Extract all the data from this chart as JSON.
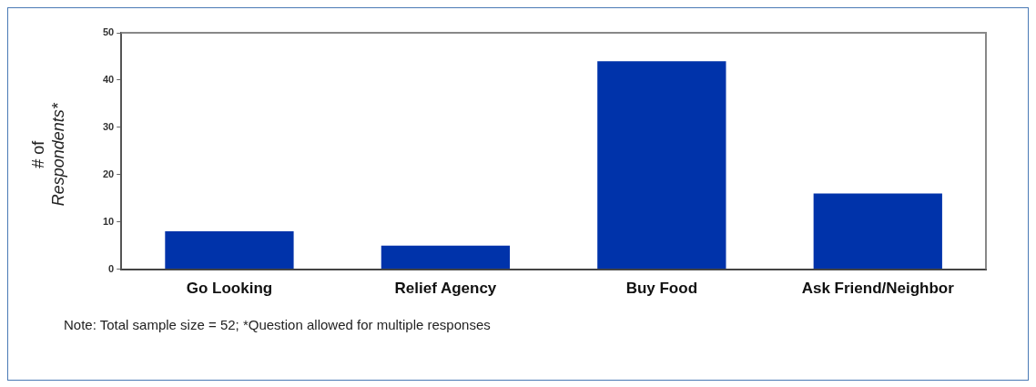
{
  "chart_data": {
    "type": "bar",
    "categories": [
      "Go Looking",
      "Relief Agency",
      "Buy Food",
      "Ask Friend/Neighbor"
    ],
    "values": [
      8,
      5,
      44,
      16
    ],
    "color": "#0033aa",
    "ylabel": "# of Respondents*",
    "ylim": [
      0,
      50
    ],
    "yticks": [
      0,
      10,
      20,
      30,
      40,
      50
    ],
    "grid": false,
    "legend": false,
    "annotations": [
      "Note:  Total sample size = 52; *Question allowed for multiple responses"
    ]
  }
}
